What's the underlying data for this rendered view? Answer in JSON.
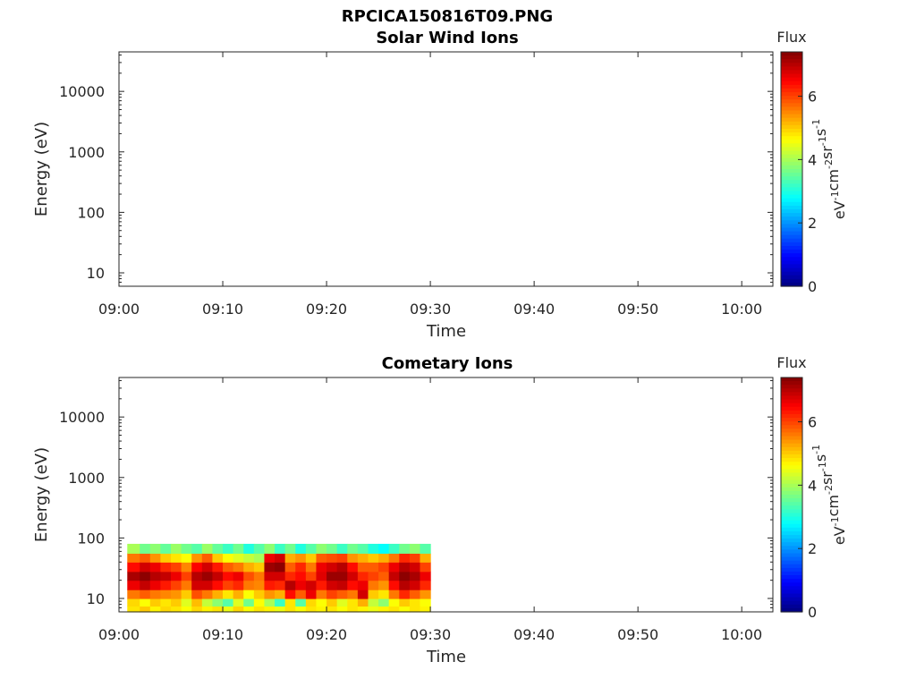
{
  "figure_title": "RPCICA150816T09.PNG",
  "colors": {
    "jet": [
      "#00007f",
      "#0000ff",
      "#007fff",
      "#00ffff",
      "#7fff7f",
      "#ffff00",
      "#ff7f00",
      "#ff0000",
      "#7f0000"
    ],
    "axes": "#262626"
  },
  "chart_data": [
    {
      "type": "heatmap",
      "title": "Solar Wind Ions",
      "xlabel": "Time",
      "ylabel": "Energy (eV)",
      "x_ticks": [
        "09:00",
        "09:10",
        "09:20",
        "09:30",
        "09:40",
        "09:50",
        "10:00"
      ],
      "x_range_minutes": [
        0,
        63
      ],
      "y_scale": "log",
      "y_ticks": [
        "10",
        "100",
        "1000",
        "10000"
      ],
      "y_range": [
        6,
        45000
      ],
      "colorbar": {
        "label": "Flux",
        "unit_base": [
          "eV",
          "cm",
          "sr",
          "s"
        ],
        "unit_exp": [
          "-1",
          "-2",
          "-1",
          "-1"
        ],
        "ticks": [
          "0",
          "2",
          "4",
          "6"
        ],
        "range": [
          0,
          7.4
        ]
      },
      "data": []
    },
    {
      "type": "heatmap",
      "title": "Cometary Ions",
      "xlabel": "Time",
      "ylabel": "Energy (eV)",
      "x_ticks": [
        "09:00",
        "09:10",
        "09:20",
        "09:30",
        "09:40",
        "09:50",
        "10:00"
      ],
      "x_range_minutes": [
        0,
        63
      ],
      "y_scale": "log",
      "y_ticks": [
        "10",
        "100",
        "1000",
        "10000"
      ],
      "y_range": [
        6,
        45000
      ],
      "colorbar": {
        "label": "Flux",
        "unit_base": [
          "eV",
          "cm",
          "sr",
          "s"
        ],
        "unit_exp": [
          "-1",
          "-2",
          "-1",
          "-1"
        ],
        "ticks": [
          "0",
          "2",
          "4",
          "6"
        ],
        "range": [
          0,
          7.4
        ]
      },
      "data": {
        "time_start_minutes": 0.8,
        "time_end_minutes": 30,
        "energy_bands_eV": [
          6,
          7.5,
          10,
          14,
          20,
          28,
          40,
          56,
          80
        ],
        "time_bins_minutes": [
          0.8,
          2,
          3,
          4,
          5,
          6,
          7,
          8,
          9,
          10,
          11,
          12,
          13,
          14,
          15,
          16,
          17,
          18,
          19,
          20,
          21,
          22,
          23,
          24,
          25,
          26,
          27,
          28,
          29,
          30
        ],
        "flux": [
          [
            4.8,
            4.9,
            5.6,
            6.6,
            7.1,
            6.4,
            5.6,
            4.0
          ],
          [
            5.0,
            4.6,
            5.8,
            6.9,
            7.3,
            6.8,
            5.8,
            3.6
          ],
          [
            4.7,
            5.0,
            5.6,
            6.6,
            7.0,
            6.6,
            5.4,
            3.8
          ],
          [
            4.9,
            4.8,
            5.5,
            6.3,
            6.9,
            6.2,
            5.0,
            3.5
          ],
          [
            4.8,
            5.0,
            5.4,
            6.0,
            6.6,
            6.0,
            4.8,
            3.9
          ],
          [
            4.6,
            4.4,
            5.0,
            5.6,
            6.0,
            5.5,
            4.6,
            3.6
          ],
          [
            4.9,
            5.1,
            5.9,
            6.8,
            7.0,
            6.5,
            5.4,
            3.4
          ],
          [
            4.7,
            4.2,
            5.6,
            6.8,
            7.2,
            6.8,
            5.8,
            3.9
          ],
          [
            4.8,
            3.8,
            5.2,
            6.4,
            6.9,
            6.3,
            5.0,
            3.5
          ],
          [
            4.5,
            3.4,
            4.8,
            6.0,
            6.4,
            5.8,
            4.6,
            3.2
          ],
          [
            4.9,
            4.4,
            5.2,
            6.2,
            6.6,
            5.6,
            4.4,
            3.6
          ],
          [
            4.6,
            3.6,
            4.6,
            5.6,
            5.9,
            5.2,
            4.2,
            3.0
          ],
          [
            4.8,
            4.6,
            5.0,
            5.5,
            5.6,
            5.0,
            4.0,
            3.4
          ],
          [
            4.7,
            4.0,
            5.4,
            6.3,
            6.8,
            7.2,
            6.6,
            3.8
          ],
          [
            4.5,
            3.2,
            5.2,
            6.2,
            6.8,
            7.3,
            6.8,
            3.2
          ],
          [
            4.8,
            4.8,
            6.4,
            7.0,
            6.2,
            5.8,
            5.2,
            3.6
          ],
          [
            4.6,
            3.4,
            5.8,
            6.6,
            6.4,
            6.2,
            5.4,
            3.0
          ],
          [
            4.8,
            4.9,
            6.6,
            6.8,
            6.0,
            5.6,
            5.0,
            3.4
          ],
          [
            4.7,
            4.6,
            5.6,
            6.3,
            6.7,
            6.6,
            5.8,
            3.8
          ],
          [
            4.8,
            5.0,
            6.0,
            6.8,
            7.2,
            6.8,
            5.9,
            3.6
          ],
          [
            4.6,
            4.4,
            5.8,
            6.9,
            7.2,
            7.0,
            6.0,
            3.2
          ],
          [
            4.8,
            4.8,
            5.6,
            6.4,
            6.8,
            6.4,
            5.4,
            3.6
          ],
          [
            4.7,
            5.2,
            6.8,
            6.6,
            6.2,
            5.8,
            5.2,
            3.4
          ],
          [
            4.5,
            4.2,
            5.0,
            5.6,
            6.0,
            5.8,
            5.0,
            3.0
          ],
          [
            4.7,
            3.8,
            4.8,
            5.4,
            5.8,
            6.0,
            5.2,
            2.8
          ],
          [
            4.8,
            4.6,
            5.6,
            6.4,
            6.9,
            6.6,
            5.6,
            3.2
          ],
          [
            4.6,
            5.0,
            6.2,
            7.0,
            7.3,
            7.0,
            6.2,
            3.6
          ],
          [
            4.8,
            4.8,
            5.8,
            6.8,
            7.1,
            6.8,
            6.0,
            3.8
          ],
          [
            4.7,
            4.6,
            5.4,
            6.2,
            6.6,
            6.0,
            5.2,
            3.4
          ]
        ]
      }
    }
  ]
}
